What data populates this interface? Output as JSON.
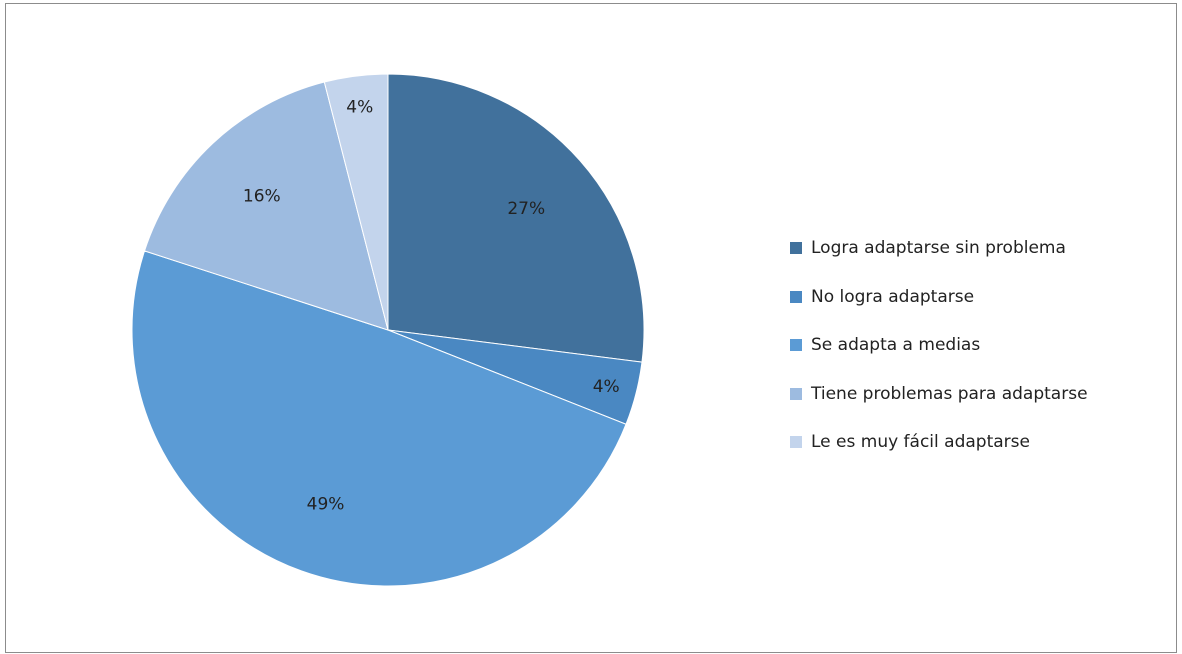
{
  "chart_data": {
    "type": "pie",
    "title": "",
    "legend_position": "right",
    "series": [
      {
        "name": "Logra adaptarse sin problema",
        "value": 27,
        "label": "27%",
        "color": "#41719c"
      },
      {
        "name": "No logra adaptarse",
        "value": 4,
        "label": "4%",
        "color": "#4a88c2"
      },
      {
        "name": "Se adapta a medias",
        "value": 49,
        "label": "49%",
        "color": "#5b9bd5"
      },
      {
        "name": "Tiene problemas para adaptarse",
        "value": 16,
        "label": "16%",
        "color": "#9dbbe0"
      },
      {
        "name": "Le es muy fácil adaptarse",
        "value": 4,
        "label": "4%",
        "color": "#c3d4ec"
      }
    ]
  }
}
